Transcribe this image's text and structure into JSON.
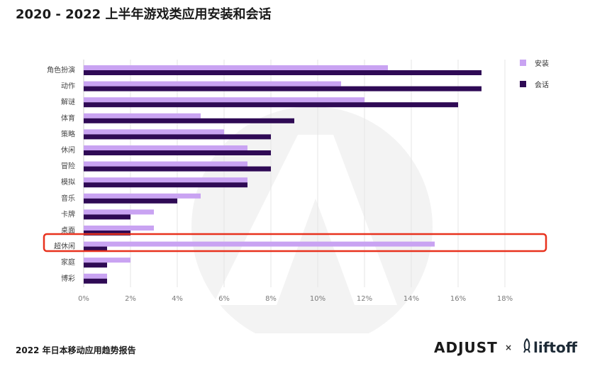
{
  "header": {
    "title": "2020 - 2022 上半年游戏类应用安装和会话"
  },
  "footer": {
    "report_title": "2022 年日本移动应用趋势报告",
    "brand_left": "ADJUST",
    "separator": "×",
    "brand_right": "liftoff"
  },
  "colors": {
    "install": "#c9a3f2",
    "session": "#2f0a55",
    "highlight": "#e8321e",
    "grid": "#e6e6e6",
    "watermark": "#f2f2f2"
  },
  "chart_data": {
    "type": "bar",
    "orientation": "horizontal",
    "title": "2020 - 2022 上半年游戏类应用安装和会话",
    "categories": [
      "角色扮演",
      "动作",
      "解谜",
      "体育",
      "策略",
      "休闲",
      "冒险",
      "模拟",
      "音乐",
      "卡牌",
      "桌面",
      "超休闲",
      "家庭",
      "博彩"
    ],
    "series": [
      {
        "name": "安装",
        "values": [
          13,
          11,
          12,
          5,
          6,
          7,
          7,
          7,
          5,
          3,
          3,
          15,
          2,
          1
        ]
      },
      {
        "name": "会话",
        "values": [
          17,
          17,
          16,
          9,
          8,
          8,
          8,
          7,
          4,
          2,
          2,
          1,
          1,
          1
        ]
      }
    ],
    "xlim": [
      0,
      18
    ],
    "xticks": [
      "0%",
      "2%",
      "4%",
      "6%",
      "8%",
      "10%",
      "12%",
      "14%",
      "16%",
      "18%"
    ],
    "legend": "top-right",
    "grid": true,
    "highlighted_category": "超休闲"
  }
}
